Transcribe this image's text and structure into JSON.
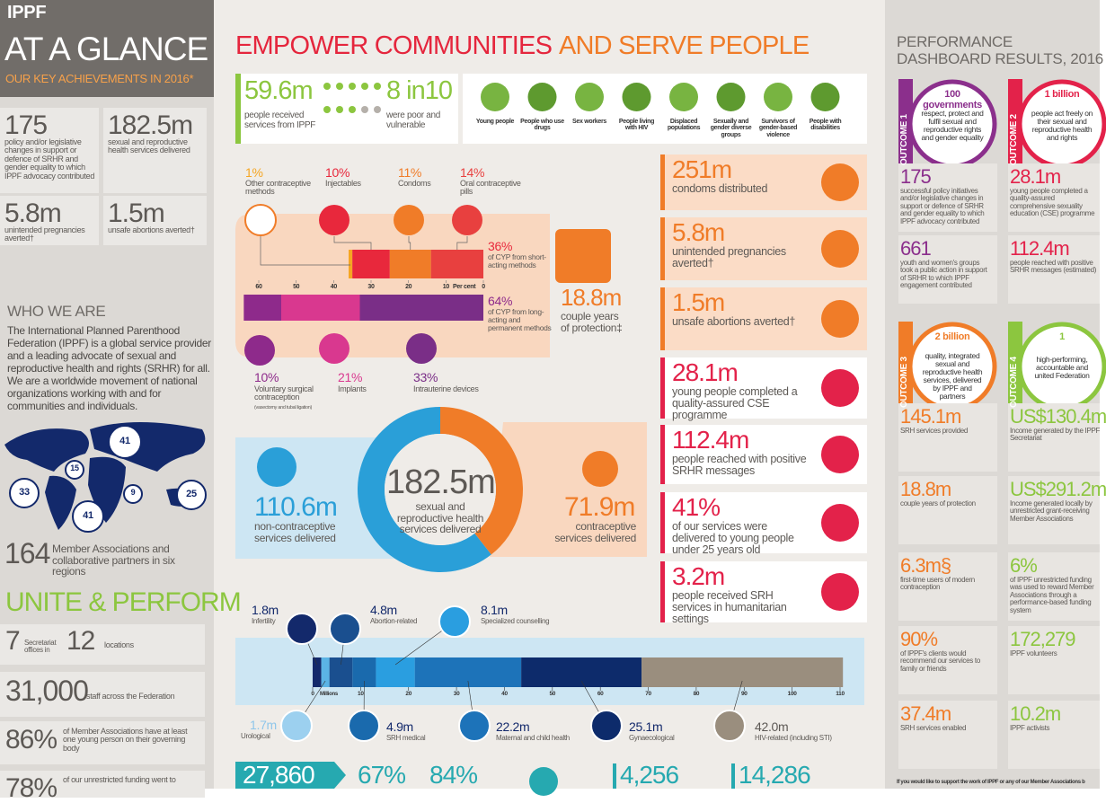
{
  "left": {
    "logo": "IPPF",
    "title": "AT A GLANCE",
    "subtitle": "OUR KEY ACHIEVEMENTS IN 2016*",
    "key_stats": [
      {
        "value": "175",
        "label": "policy and/or legislative changes in support or defence of SRHR and gender equality to which IPPF advocacy contributed"
      },
      {
        "value": "182.5m",
        "label": "sexual and reproductive health services delivered"
      },
      {
        "value": "5.8m",
        "label": "unintended pregnancies averted†"
      },
      {
        "value": "1.5m",
        "label": "unsafe abortions averted†"
      }
    ],
    "who_we_are": {
      "heading": "WHO WE ARE",
      "text": "The International Planned Parenthood Federation (IPPF) is a global service provider and a leading advocate of sexual and reproductive health and rights (SRHR) for all. We are a worldwide movement of national organizations working with and for communities and individuals."
    },
    "map_regions": [
      "41",
      "15",
      "33",
      "9",
      "41",
      "25"
    ],
    "members": {
      "value": "164",
      "label": "Member Associations and collaborative partners in six regions"
    },
    "unite": {
      "heading": "UNITE & PERFORM",
      "offices_value": "7",
      "offices_label": "Secretariat offices in",
      "locations_value": "12",
      "locations_label": "locations",
      "staff_value": "31,000",
      "staff_label": "staff across the Federation",
      "young_value": "86%",
      "young_label": "of Member Associations have at least one young person on their governing body",
      "funding_value": "78%",
      "funding_label": "of our unrestricted funding went to"
    }
  },
  "middle": {
    "title_a": "EMPOWER COMMUNITIES",
    "title_b": "AND SERVE PEOPLE",
    "reach": {
      "value": "59.6m",
      "label": "people received services from IPPF",
      "share": "8 in10",
      "share_label": "were poor and vulnerable"
    },
    "groups": [
      "Young people",
      "People who use drugs",
      "Sex workers",
      "People living with HIV",
      "Displaced populations",
      "Sexually and gender diverse groups",
      "Survivors of gender-based violence",
      "People with disabilities"
    ],
    "cyp": {
      "xlim": [
        0,
        60
      ],
      "xticks": [
        60,
        50,
        40,
        30,
        20,
        10,
        0
      ],
      "unit": "Per cent",
      "short": {
        "labels": [
          "Other contraceptive methods",
          "Injectables",
          "Condoms",
          "Oral contraceptive pills"
        ],
        "values": [
          1,
          10,
          11,
          14
        ],
        "value_labels": [
          "1%",
          "10%",
          "11%",
          "14%"
        ],
        "colors": [
          "#f5a623",
          "#e8283c",
          "#f07c28",
          "#e8403f"
        ],
        "total": "36%",
        "total_label": "of CYP from short-acting methods"
      },
      "long": {
        "labels": [
          "Voluntary surgical contraception",
          "Implants",
          "Intrauterine devices"
        ],
        "note": "(vasectomy and tubal ligation)",
        "values": [
          10,
          21,
          33
        ],
        "value_labels": [
          "10%",
          "21%",
          "33%"
        ],
        "colors": [
          "#8e2a8b",
          "#d9388f",
          "#7a2e87"
        ],
        "total": "64%",
        "total_label": "of CYP from long-acting and permanent methods"
      },
      "cyp_value": "18.8m",
      "cyp_label": "couple years of protection‡"
    },
    "donut": {
      "labels": [
        "non-contraceptive services delivered",
        "contraceptive services delivered"
      ],
      "values": [
        110.6,
        71.9
      ],
      "value_labels": [
        "110.6m",
        "71.9m"
      ],
      "colors": [
        "#2a9fd8",
        "#f07c28"
      ],
      "total": "182.5m",
      "total_label": "sexual and reproductive health services delivered"
    },
    "highlights": [
      {
        "value": "251m",
        "label": "condoms distributed"
      },
      {
        "value": "5.8m",
        "label": "unintended pregnancies averted†"
      },
      {
        "value": "1.5m",
        "label": "unsafe abortions averted†"
      },
      {
        "value": "28.1m",
        "label": "young people completed a quality-assured CSE programme"
      },
      {
        "value": "112.4m",
        "label": "people reached with positive SRHR messages"
      },
      {
        "value": "41%",
        "label": "of our services were delivered to young people under 25 years old"
      },
      {
        "value": "3.2m",
        "label": "people received SRH services in humanitarian settings"
      }
    ],
    "services": {
      "type": "bar",
      "categories": [
        "Infertility",
        "Urological",
        "Abortion-related",
        "SRH medical",
        "Specialized counselling",
        "Maternal and child health",
        "Gynaecological",
        "HIV-related (including STI)"
      ],
      "values": [
        1.8,
        1.7,
        4.8,
        4.9,
        8.1,
        22.2,
        25.1,
        42.0
      ],
      "value_labels": [
        "1.8m",
        "1.7m",
        "4.8m",
        "4.9m",
        "8.1m",
        "22.2m",
        "25.1m",
        "42.0m"
      ],
      "colors": [
        "#13296b",
        "#5bb4e5",
        "#1a4f8f",
        "#1a6aad",
        "#2a9ee0",
        "#1d73b9",
        "#0d2b6b",
        "#9a8e7e"
      ],
      "xlim": [
        0,
        110
      ],
      "xticks": [
        0,
        10,
        20,
        30,
        40,
        50,
        60,
        70,
        80,
        90,
        100,
        110
      ],
      "unit": "Millions"
    },
    "bottom": [
      "27,860",
      "67%",
      "84%",
      "4,256",
      "14,286"
    ]
  },
  "right": {
    "title_a": "PERFORMANCE",
    "title_b": "DASHBOARD RESULTS, 2016",
    "outcomes": [
      {
        "tag": "OUTCOME 1",
        "value": "100 governments",
        "label": "respect, protect and fulfil sexual and reproductive rights and gender equality",
        "stats": [
          {
            "value": "175",
            "label": "successful policy initiatives and/or legislative changes in support or defence of SRHR and gender equality to which IPPF advocacy contributed"
          },
          {
            "value": "661",
            "label": "youth and women's groups took a public action in support of SRHR to which IPPF engagement contributed"
          }
        ]
      },
      {
        "tag": "OUTCOME 2",
        "value": "1 billion",
        "label": "people act freely on their sexual and reproductive health and rights",
        "stats": [
          {
            "value": "28.1m",
            "label": "young people completed a quality-assured comprehensive sexuality education (CSE) programme"
          },
          {
            "value": "112.4m",
            "label": "people reached with positive SRHR messages (estimated)"
          }
        ]
      },
      {
        "tag": "OUTCOME 3",
        "value": "2 billion",
        "label": "quality, integrated sexual and reproductive health services, delivered by IPPF and partners",
        "stats": [
          {
            "value": "145.1m",
            "label": "SRH services provided"
          },
          {
            "value": "18.8m",
            "label": "couple years of protection"
          },
          {
            "value": "6.3m§",
            "label": "first-time users of modern contraception"
          },
          {
            "value": "90%",
            "label": "of IPPF's clients would recommend our services to family or friends"
          },
          {
            "value": "37.4m",
            "label": "SRH services enabled"
          }
        ]
      },
      {
        "tag": "OUTCOME 4",
        "value": "1",
        "label": "high-performing, accountable and united Federation",
        "stats": [
          {
            "value": "US$130.4m",
            "label": "Income generated by the IPPF Secretariat"
          },
          {
            "value": "US$291.2m",
            "label": "Income generated locally by unrestricted grant-receiving Member Associations"
          },
          {
            "value": "6%",
            "label": "of IPPF unrestricted funding was used to reward Member Associations through a performance-based funding system"
          },
          {
            "value": "172,279",
            "label": "IPPF volunteers"
          },
          {
            "value": "10.2m",
            "label": "IPPF activists"
          }
        ]
      }
    ],
    "footer": "If you would like to support the work of IPPF or any of our Member Associations b"
  }
}
